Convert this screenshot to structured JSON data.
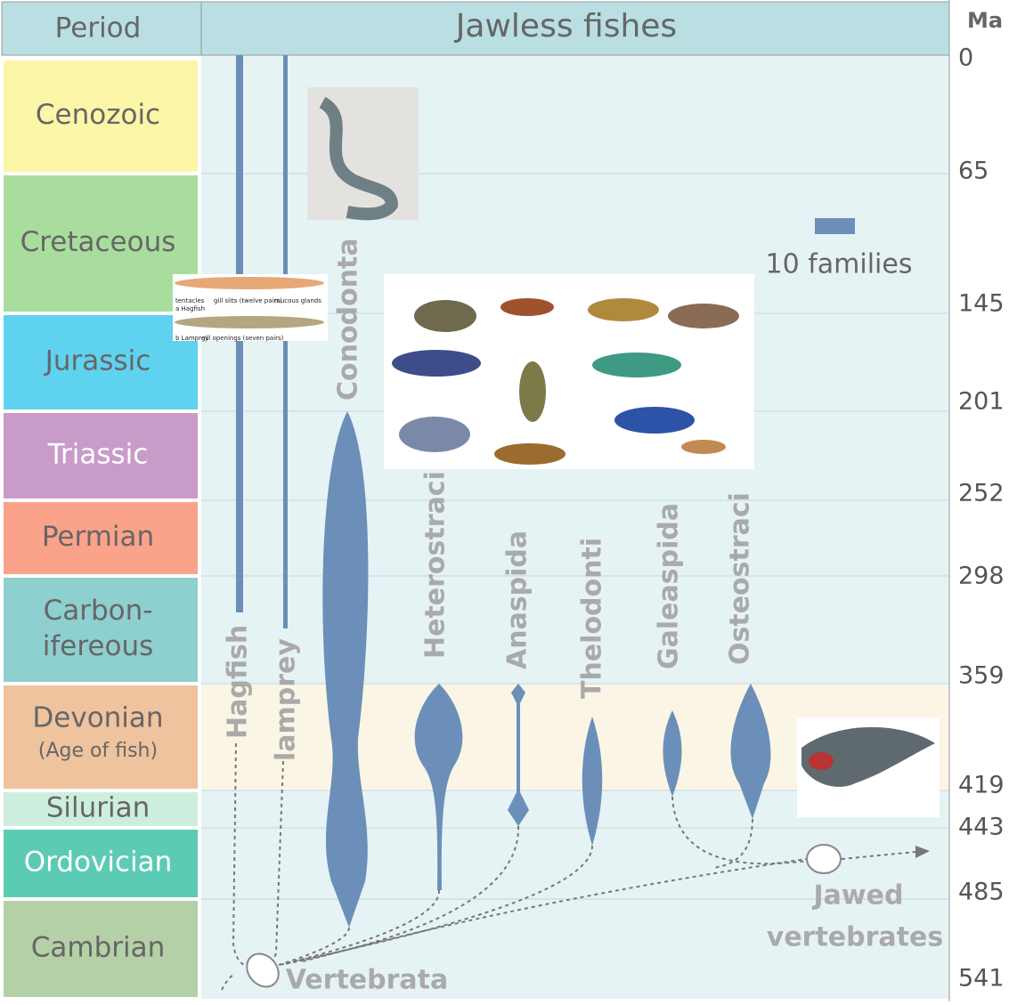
{
  "header": {
    "period": "Period",
    "title": "Jawless fishes",
    "unit": "Ma"
  },
  "periods": [
    {
      "lines": [
        "Cenozoic"
      ]
    },
    {
      "lines": [
        "Cretaceous"
      ]
    },
    {
      "lines": [
        "Jurassic"
      ]
    },
    {
      "lines": [
        "Triassic"
      ]
    },
    {
      "lines": [
        "Permian"
      ]
    },
    {
      "lines": [
        "Carbon-",
        "ifereous"
      ]
    },
    {
      "lines": [
        "Devonian",
        "(Age of fish)"
      ]
    },
    {
      "lines": [
        "Silurian"
      ]
    },
    {
      "lines": [
        "Ordovician"
      ]
    },
    {
      "lines": [
        "Cambrian"
      ]
    }
  ],
  "ma_ticks": [
    0,
    65,
    145,
    201,
    252,
    298,
    359,
    419,
    443,
    485,
    541
  ],
  "taxa": [
    "Hagfish",
    "lamprey",
    "Conodonta",
    "Heterostraci",
    "Anaspida",
    "Thelodonti",
    "Galeaspida",
    "Osteostraci"
  ],
  "legend": "10 families",
  "nodes": {
    "root": "Vertebrata",
    "jawed": [
      "Jawed",
      "vertebrates"
    ]
  },
  "hagfish_figure": {
    "labels": [
      "tentacles",
      "gill slits (twelve pairs)",
      "mucous glands",
      "a Hagfish",
      "b Lamprey",
      "gill openings (seven pairs)"
    ]
  }
}
